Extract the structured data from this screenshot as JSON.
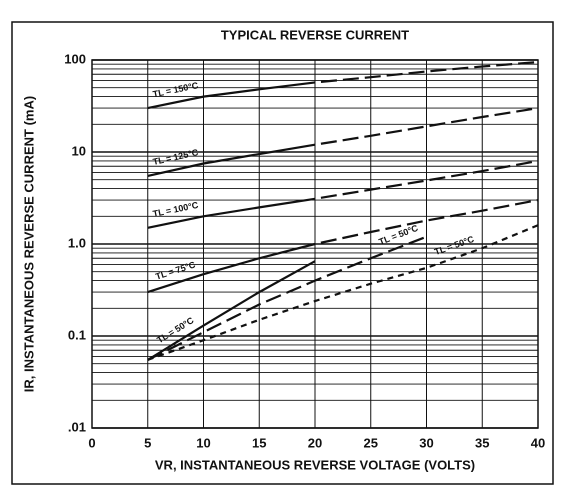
{
  "chart_data": {
    "type": "line",
    "title": "TYPICAL REVERSE CURRENT",
    "x_label": "VR, INSTANTANEOUS REVERSE VOLTAGE (VOLTS)",
    "y_label": "IR, INSTANTANEOUS REVERSE CURRENT (mA)",
    "y_scale": "log",
    "grid": true,
    "color": "#111111",
    "xlim": [
      0,
      40
    ],
    "xticks": [
      0,
      5,
      10,
      15,
      20,
      25,
      30,
      35,
      40
    ],
    "ylim": [
      0.01,
      100
    ],
    "yticks": [
      {
        "value": 0.01,
        "label": ".01"
      },
      0.1,
      {
        "value": 1,
        "label": "1.0"
      },
      10,
      100
    ],
    "series": [
      {
        "name": "TL = 150°C",
        "line_style": "solid-dashed",
        "x": [
          5,
          10,
          15,
          20,
          25,
          30,
          35,
          40
        ],
        "values": [
          30,
          40,
          48,
          57,
          65,
          75,
          85,
          95
        ]
      },
      {
        "name": "TL = 125°C",
        "line_style": "solid-dashed",
        "x": [
          5,
          10,
          15,
          20,
          25,
          30,
          35,
          40
        ],
        "values": [
          5.5,
          7.5,
          9.5,
          12,
          15,
          19,
          24,
          30
        ]
      },
      {
        "name": "TL = 100°C",
        "line_style": "solid-dashed",
        "x": [
          5,
          10,
          15,
          20,
          25,
          30,
          35,
          40
        ],
        "values": [
          1.5,
          2,
          2.5,
          3.1,
          3.9,
          4.9,
          6.2,
          8
        ]
      },
      {
        "name": "TL = 75°C",
        "line_style": "solid-dashed",
        "x": [
          5,
          10,
          15,
          20,
          25,
          30,
          35,
          40
        ],
        "values": [
          0.3,
          0.47,
          0.7,
          1,
          1.35,
          1.8,
          2.3,
          3
        ]
      },
      {
        "name": "TL = 50°C",
        "line_style": "solid",
        "x": [
          5,
          10,
          15,
          20
        ],
        "values": [
          0.055,
          0.13,
          0.3,
          0.65
        ]
      },
      {
        "name": "TL = 50°C",
        "line_style": "long-dash",
        "x": [
          5,
          10,
          15,
          20,
          25,
          30
        ],
        "values": [
          0.055,
          0.11,
          0.22,
          0.4,
          0.7,
          1.2
        ]
      },
      {
        "name": "TL = 50°C",
        "line_style": "short-dash",
        "x": [
          5,
          10,
          15,
          20,
          25,
          30,
          35,
          40
        ],
        "values": [
          0.055,
          0.09,
          0.15,
          0.24,
          0.37,
          0.55,
          0.9,
          1.6
        ]
      }
    ]
  }
}
